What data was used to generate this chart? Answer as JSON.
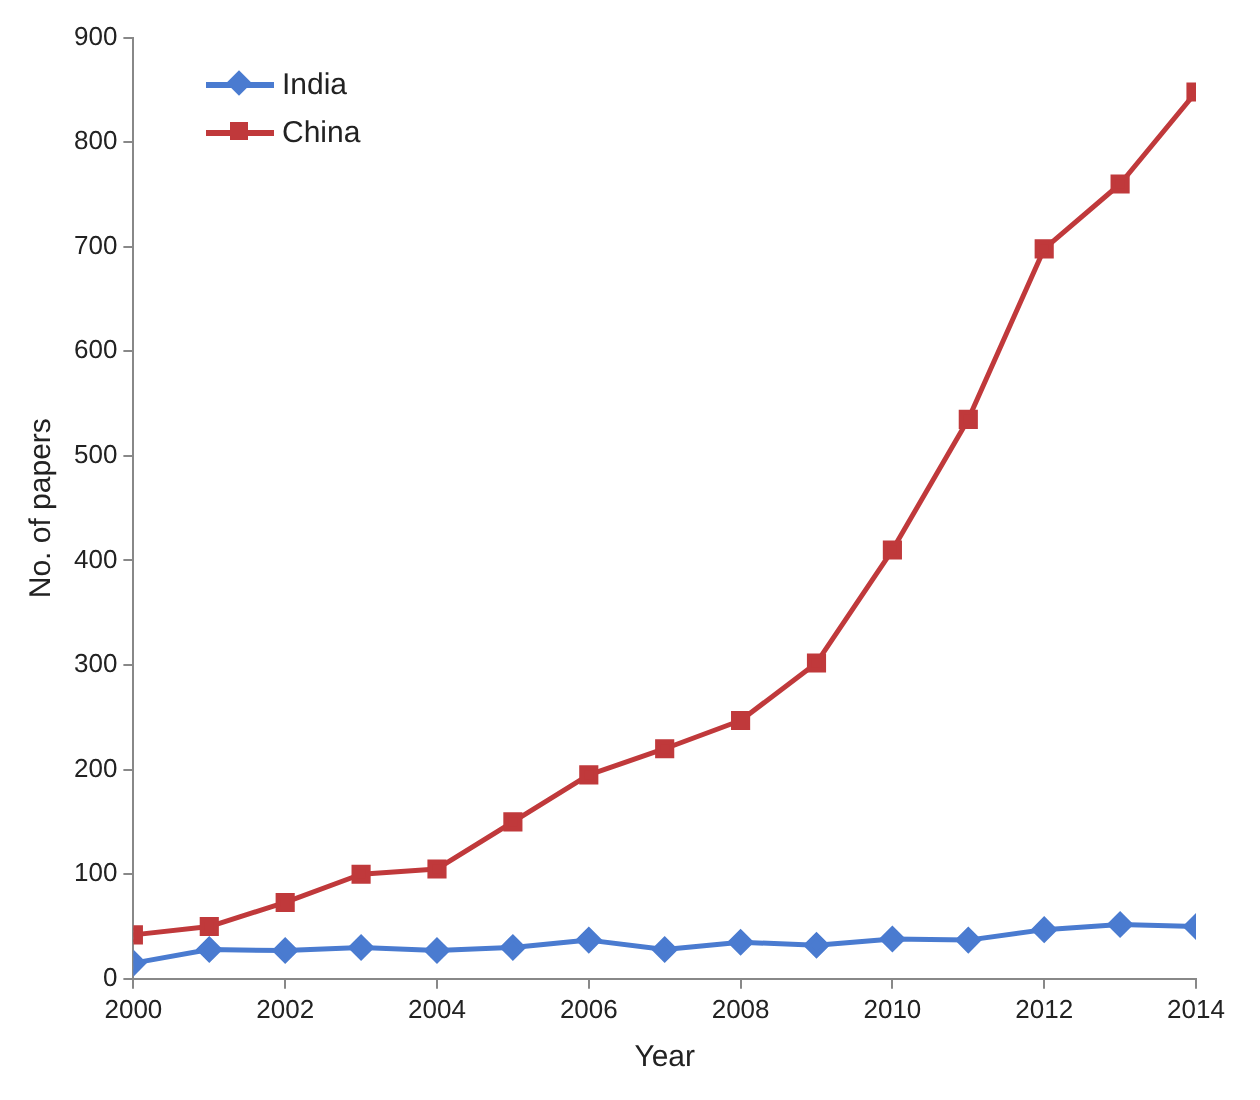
{
  "chart_data": {
    "type": "line",
    "xlabel": "Year",
    "ylabel": "No. of papers",
    "x": [
      2000,
      2001,
      2002,
      2003,
      2004,
      2005,
      2006,
      2007,
      2008,
      2009,
      2010,
      2011,
      2012,
      2013,
      2014
    ],
    "series": [
      {
        "name": "India",
        "color": "#4a7bd0",
        "marker": "diamond",
        "values": [
          15,
          28,
          27,
          30,
          27,
          30,
          37,
          28,
          35,
          32,
          38,
          37,
          47,
          52,
          50
        ]
      },
      {
        "name": "China",
        "color": "#c0393b",
        "marker": "square",
        "values": [
          42,
          50,
          73,
          100,
          105,
          150,
          195,
          220,
          247,
          302,
          410,
          535,
          698,
          760,
          848
        ]
      }
    ],
    "xlim": [
      2000,
      2014
    ],
    "xticks": [
      2000,
      2002,
      2004,
      2006,
      2008,
      2010,
      2012,
      2014
    ],
    "ylim": [
      0,
      900
    ],
    "yticks": [
      0,
      100,
      200,
      300,
      400,
      500,
      600,
      700,
      800,
      900
    ],
    "grid": false,
    "legend": "top left",
    "line_style": "solid"
  }
}
